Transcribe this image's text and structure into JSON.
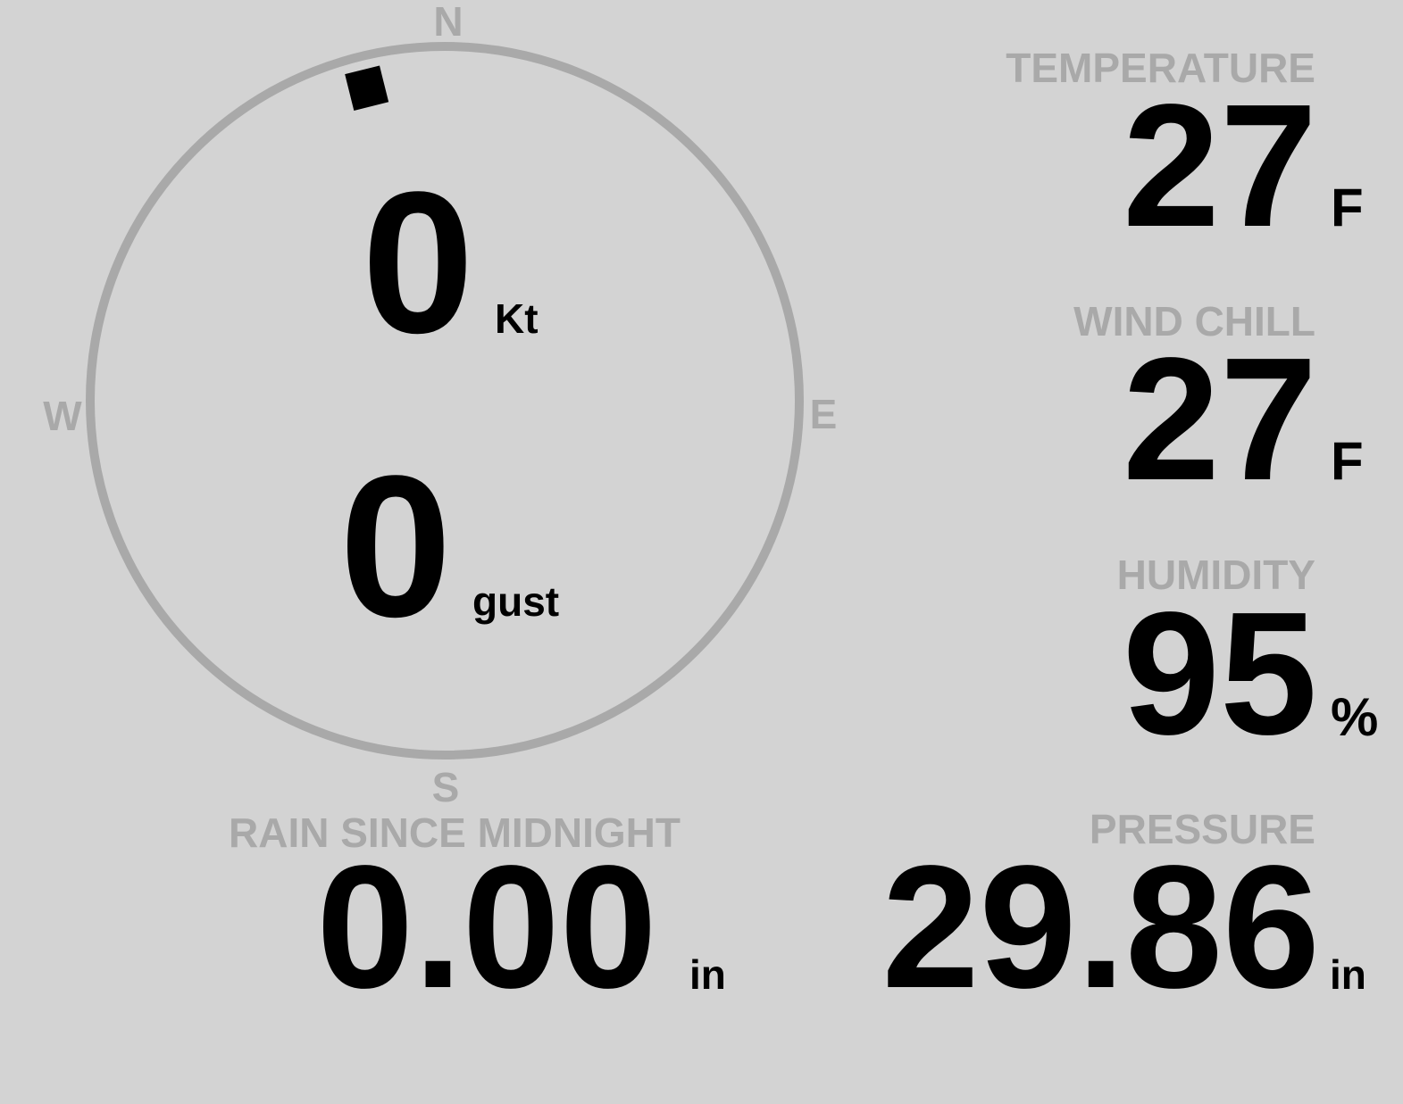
{
  "colors": {
    "background": "#d3d3d3",
    "label": "#a9a9a9",
    "value": "#000000",
    "ring": "#a9a9a9"
  },
  "compass": {
    "north": "N",
    "south": "S",
    "east": "E",
    "west": "W",
    "wind_direction_deg": 346,
    "wind_speed": "0",
    "wind_speed_unit": "Kt",
    "gust": "0",
    "gust_unit": "gust"
  },
  "temperature": {
    "label": "TEMPERATURE",
    "value": "27",
    "unit": "F"
  },
  "wind_chill": {
    "label": "WIND CHILL",
    "value": "27",
    "unit": "F"
  },
  "humidity": {
    "label": "HUMIDITY",
    "value": "95",
    "unit": "%"
  },
  "pressure": {
    "label": "PRESSURE",
    "value": "29.86",
    "unit": "in"
  },
  "rain": {
    "label": "RAIN SINCE MIDNIGHT",
    "value": "0.00",
    "unit": "in"
  }
}
